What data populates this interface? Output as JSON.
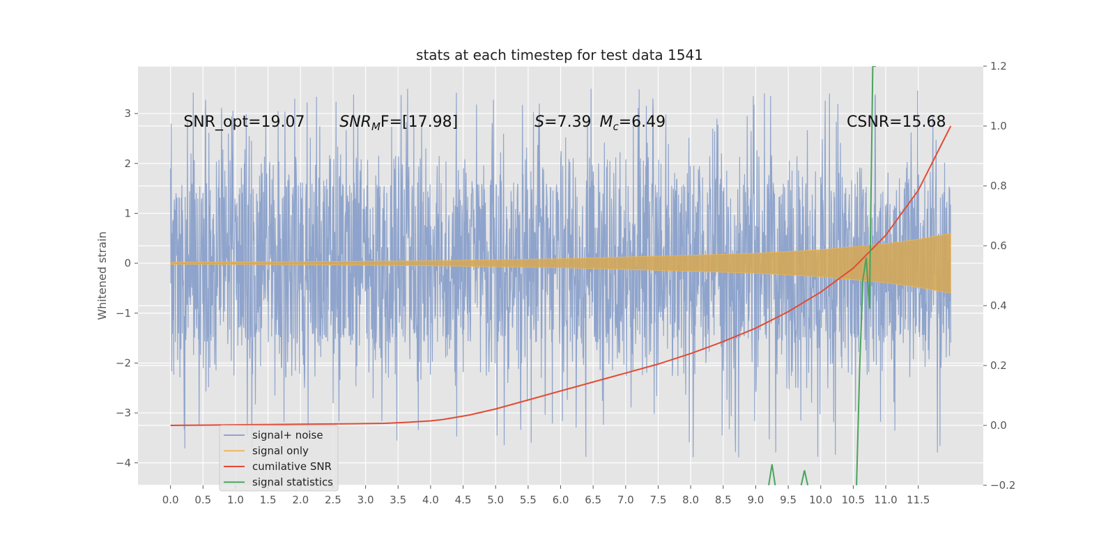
{
  "chart_data": {
    "type": "line",
    "title": "stats at each timestep for test data 1541",
    "xlabel": "",
    "ylabel": "Whitened strain",
    "grid": true,
    "legend_position": "lower-left",
    "xlim": [
      -0.5,
      12.5
    ],
    "ylim": [
      -4.45,
      3.95
    ],
    "y2lim": [
      -0.2,
      1.2
    ],
    "x_ticks": [
      "0.0",
      "0.5",
      "1.0",
      "1.5",
      "2.0",
      "2.5",
      "3.0",
      "3.5",
      "4.0",
      "4.5",
      "5.0",
      "5.5",
      "6.0",
      "6.5",
      "7.0",
      "7.5",
      "8.0",
      "8.5",
      "9.0",
      "9.5",
      "10.0",
      "10.5",
      "11.0",
      "11.5"
    ],
    "y_ticks": [
      "-4",
      "-3",
      "-2",
      "-1",
      "0",
      "1",
      "2",
      "3"
    ],
    "y2_ticks": [
      "-0.2",
      "0.0",
      "0.2",
      "0.4",
      "0.6",
      "0.8",
      "1.0",
      "1.2"
    ],
    "annotations": [
      {
        "id": "snr-opt",
        "text": "SNR_opt=19.07",
        "x": 0.2,
        "y": 2.85
      },
      {
        "id": "snr-mf",
        "prefix": "SNR",
        "sub": "M",
        "suffix": "F=[17.98]",
        "x": 2.6,
        "y": 2.85
      },
      {
        "id": "s-stat",
        "prefix": "S",
        "suffix": "=7.39",
        "x": 5.6,
        "y": 2.85
      },
      {
        "id": "mc",
        "prefix": "M",
        "sub": "c",
        "suffix": "=6.49",
        "x": 6.6,
        "y": 2.85
      },
      {
        "id": "csnr",
        "text": "CSNR=15.68",
        "x": 10.4,
        "y": 2.85
      }
    ],
    "series": [
      {
        "name": "signal+ noise",
        "color": "#8fa4cc",
        "axis": "left",
        "kind": "noise",
        "x_start": 0.0,
        "x_end": 12.0,
        "noise_band": [
          -1.6,
          1.6
        ],
        "peak_range": [
          -4.1,
          3.6
        ]
      },
      {
        "name": "signal only",
        "color": "#f0b64f",
        "axis": "left",
        "kind": "envelope",
        "x": [
          0,
          2,
          4,
          6,
          8,
          9,
          10,
          10.5,
          11,
          11.5,
          12
        ],
        "upper": [
          0.02,
          0.03,
          0.05,
          0.09,
          0.16,
          0.2,
          0.27,
          0.33,
          0.39,
          0.48,
          0.6
        ],
        "lower": [
          -0.02,
          -0.03,
          -0.05,
          -0.09,
          -0.16,
          -0.2,
          -0.27,
          -0.33,
          -0.39,
          -0.48,
          -0.6
        ]
      },
      {
        "name": "cumilative SNR",
        "color": "#e24a33",
        "axis": "right",
        "x": [
          0.0,
          0.5,
          1.0,
          1.5,
          2.0,
          2.5,
          3.0,
          3.3,
          3.6,
          4.0,
          4.2,
          4.6,
          5.0,
          5.5,
          6.0,
          6.5,
          7.0,
          7.5,
          8.0,
          8.5,
          9.0,
          9.5,
          10.0,
          10.5,
          11.0,
          11.5,
          12.0
        ],
        "values": [
          0.0,
          0.001,
          0.002,
          0.003,
          0.004,
          0.005,
          0.006,
          0.007,
          0.01,
          0.015,
          0.02,
          0.035,
          0.055,
          0.085,
          0.115,
          0.145,
          0.175,
          0.205,
          0.24,
          0.28,
          0.325,
          0.38,
          0.445,
          0.525,
          0.635,
          0.785,
          1.0
        ]
      },
      {
        "name": "signal statistics",
        "color": "#4aa35c",
        "axis": "right",
        "segments": [
          {
            "x": [
              9.2,
              9.25,
              9.3
            ],
            "values": [
              -0.2,
              -0.13,
              -0.2
            ]
          },
          {
            "x": [
              9.7,
              9.75,
              9.8
            ],
            "values": [
              -0.2,
              -0.15,
              -0.2
            ]
          },
          {
            "x": [
              10.55,
              10.6,
              10.65,
              10.7,
              10.75,
              10.8,
              10.85
            ],
            "values": [
              -0.2,
              0.2,
              0.49,
              0.56,
              0.39,
              1.2,
              1.2
            ]
          }
        ]
      }
    ]
  }
}
